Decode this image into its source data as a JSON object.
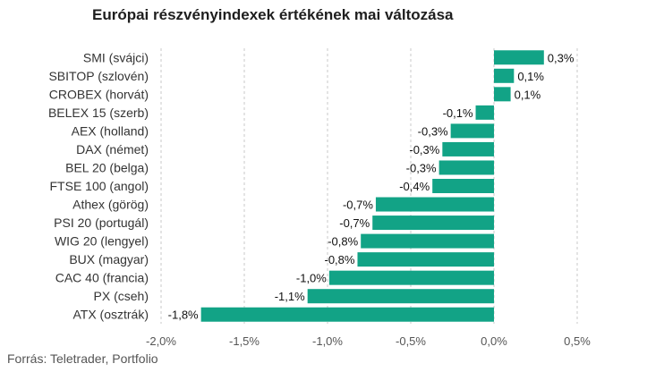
{
  "title": "Európai részvényindexek értékének mai változása",
  "source": "Forrás: Teletrader, Portfolio",
  "chart_data": {
    "type": "bar",
    "orientation": "horizontal",
    "title": "Európai részvényindexek értékének mai változása",
    "categories": [
      "SMI (svájci)",
      "SBITOP (szlovén)",
      "CROBEX (horvát)",
      "BELEX 15 (szerb)",
      "AEX (holland)",
      "DAX (német)",
      "BEL 20 (belga)",
      "FTSE 100 (angol)",
      "Athex (görög)",
      "PSI 20 (portugál)",
      "WIG 20 (lengyel)",
      "BUX (magyar)",
      "CAC 40 (francia)",
      "PX (cseh)",
      "ATX (osztrák)"
    ],
    "values": [
      0.3,
      0.12,
      0.1,
      -0.11,
      -0.26,
      -0.31,
      -0.33,
      -0.37,
      -0.71,
      -0.73,
      -0.8,
      -0.82,
      -0.99,
      -1.12,
      -1.76
    ],
    "data_labels": [
      "0,3%",
      "0,1%",
      "0,1%",
      "-0,1%",
      "-0,3%",
      "-0,3%",
      "-0,3%",
      "-0,4%",
      "-0,7%",
      "-0,7%",
      "-0,8%",
      "-0,8%",
      "-1,0%",
      "-1,1%",
      "-1,8%"
    ],
    "xlim": [
      -2.0,
      0.5
    ],
    "x_ticks": [
      -2.0,
      -1.5,
      -1.0,
      -0.5,
      0.0,
      0.5
    ],
    "x_tick_labels": [
      "-2,0%",
      "-1,5%",
      "-1,0%",
      "-0,5%",
      "0,0%",
      "0,5%"
    ],
    "grid": "vertical dashed",
    "bar_color": "#12a386",
    "colors": {
      "grid": "#c8c8c8",
      "text": "#333333"
    }
  }
}
